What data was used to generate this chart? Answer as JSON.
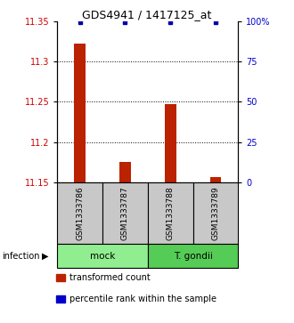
{
  "title": "GDS4941 / 1417125_at",
  "samples": [
    "GSM1333786",
    "GSM1333787",
    "GSM1333788",
    "GSM1333789"
  ],
  "red_values": [
    11.322,
    11.175,
    11.247,
    11.157
  ],
  "blue_values": [
    11.348,
    11.348,
    11.348,
    11.348
  ],
  "baseline": 11.15,
  "ylim": [
    11.15,
    11.35
  ],
  "yticks_left": [
    11.15,
    11.2,
    11.25,
    11.3,
    11.35
  ],
  "yticks_right": [
    0,
    25,
    50,
    75,
    100
  ],
  "grid_yticks": [
    11.2,
    11.25,
    11.3
  ],
  "groups": [
    {
      "label": "mock",
      "samples": [
        0,
        1
      ],
      "color": "#90EE90"
    },
    {
      "label": "T. gondii",
      "samples": [
        2,
        3
      ],
      "color": "#55CC55"
    }
  ],
  "infection_label": "infection",
  "legend_items": [
    {
      "color": "#BB2200",
      "label": "transformed count"
    },
    {
      "color": "#0000CC",
      "label": "percentile rank within the sample"
    }
  ],
  "bar_color": "#BB2200",
  "dot_color": "#0000AA",
  "sample_box_color": "#C8C8C8",
  "left_tick_color": "#CC0000",
  "right_tick_color": "#0000CC",
  "bar_width": 0.25
}
